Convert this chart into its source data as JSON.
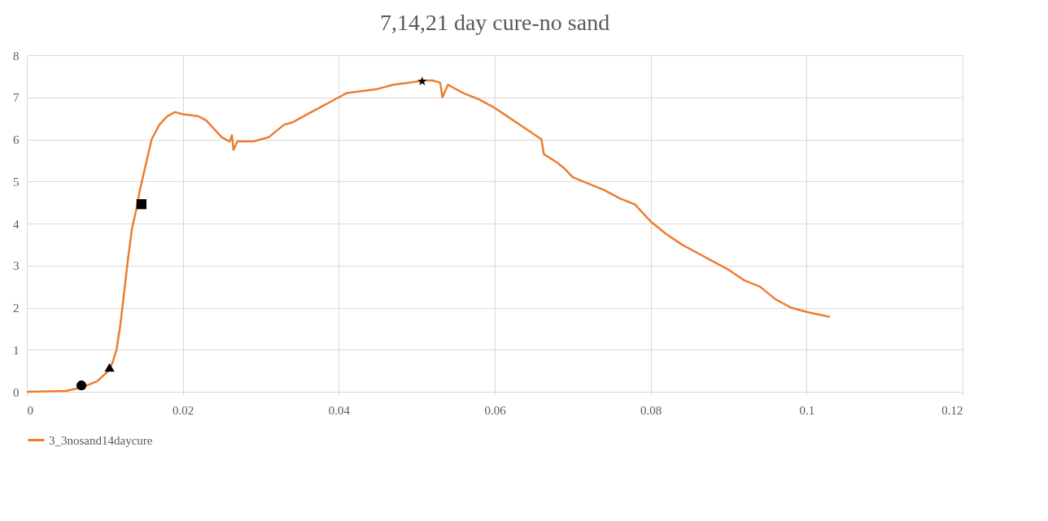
{
  "chart_data": {
    "type": "line",
    "title": "7,14,21 day cure-no sand",
    "xlim": [
      0,
      0.12
    ],
    "xticks": [
      0,
      0.02,
      0.04,
      0.06,
      0.08,
      0.1,
      0.12
    ],
    "ylim": [
      0,
      8
    ],
    "yticks": [
      0,
      1,
      2,
      3,
      4,
      5,
      6,
      7,
      8
    ],
    "grid": true,
    "legend": "bottom",
    "line_style": "solid",
    "series": [
      {
        "name": "3_3nosand14daycure",
        "color": "#ed7d31",
        "marker": "none",
        "x": [
          0,
          0.005,
          0.007,
          0.009,
          0.0105,
          0.011,
          0.0115,
          0.012,
          0.0125,
          0.013,
          0.0135,
          0.014,
          0.0145,
          0.015,
          0.0155,
          0.016,
          0.017,
          0.018,
          0.019,
          0.02,
          0.022,
          0.023,
          0.024,
          0.025,
          0.026,
          0.0263,
          0.0265,
          0.027,
          0.029,
          0.03,
          0.031,
          0.032,
          0.033,
          0.034,
          0.035,
          0.036,
          0.038,
          0.04,
          0.041,
          0.043,
          0.045,
          0.047,
          0.049,
          0.051,
          0.052,
          0.053,
          0.0533,
          0.054,
          0.056,
          0.058,
          0.06,
          0.062,
          0.064,
          0.066,
          0.0663,
          0.068,
          0.069,
          0.07,
          0.072,
          0.074,
          0.076,
          0.078,
          0.079,
          0.08,
          0.082,
          0.084,
          0.086,
          0.088,
          0.09,
          0.092,
          0.094,
          0.096,
          0.098,
          0.1,
          0.103
        ],
        "values": [
          0,
          0.02,
          0.1,
          0.25,
          0.5,
          0.7,
          1.0,
          1.6,
          2.4,
          3.2,
          3.9,
          4.3,
          4.8,
          5.2,
          5.6,
          6.0,
          6.35,
          6.55,
          6.65,
          6.6,
          6.55,
          6.45,
          6.25,
          6.05,
          5.95,
          6.1,
          5.75,
          5.95,
          5.95,
          6.0,
          6.05,
          6.2,
          6.35,
          6.4,
          6.5,
          6.6,
          6.8,
          7.0,
          7.1,
          7.15,
          7.2,
          7.3,
          7.35,
          7.4,
          7.4,
          7.35,
          7.0,
          7.3,
          7.1,
          6.95,
          6.75,
          6.5,
          6.25,
          6.0,
          5.65,
          5.45,
          5.3,
          5.1,
          4.95,
          4.8,
          4.6,
          4.45,
          4.25,
          4.05,
          3.75,
          3.5,
          3.3,
          3.1,
          2.9,
          2.65,
          2.5,
          2.2,
          2.0,
          1.9,
          1.78
        ]
      },
      {
        "type": "scatter",
        "color": "#000000",
        "marker": "circle",
        "x": [
          0.007
        ],
        "values": [
          0.15
        ]
      },
      {
        "type": "scatter",
        "color": "#000000",
        "marker": "triangle",
        "x": [
          0.0106
        ],
        "values": [
          0.58
        ]
      },
      {
        "type": "scatter",
        "color": "#000000",
        "marker": "square",
        "x": [
          0.0147
        ],
        "values": [
          4.46
        ]
      },
      {
        "type": "scatter",
        "color": "#000000",
        "marker": "star",
        "x": [
          0.0507
        ],
        "values": [
          7.38
        ]
      }
    ]
  }
}
